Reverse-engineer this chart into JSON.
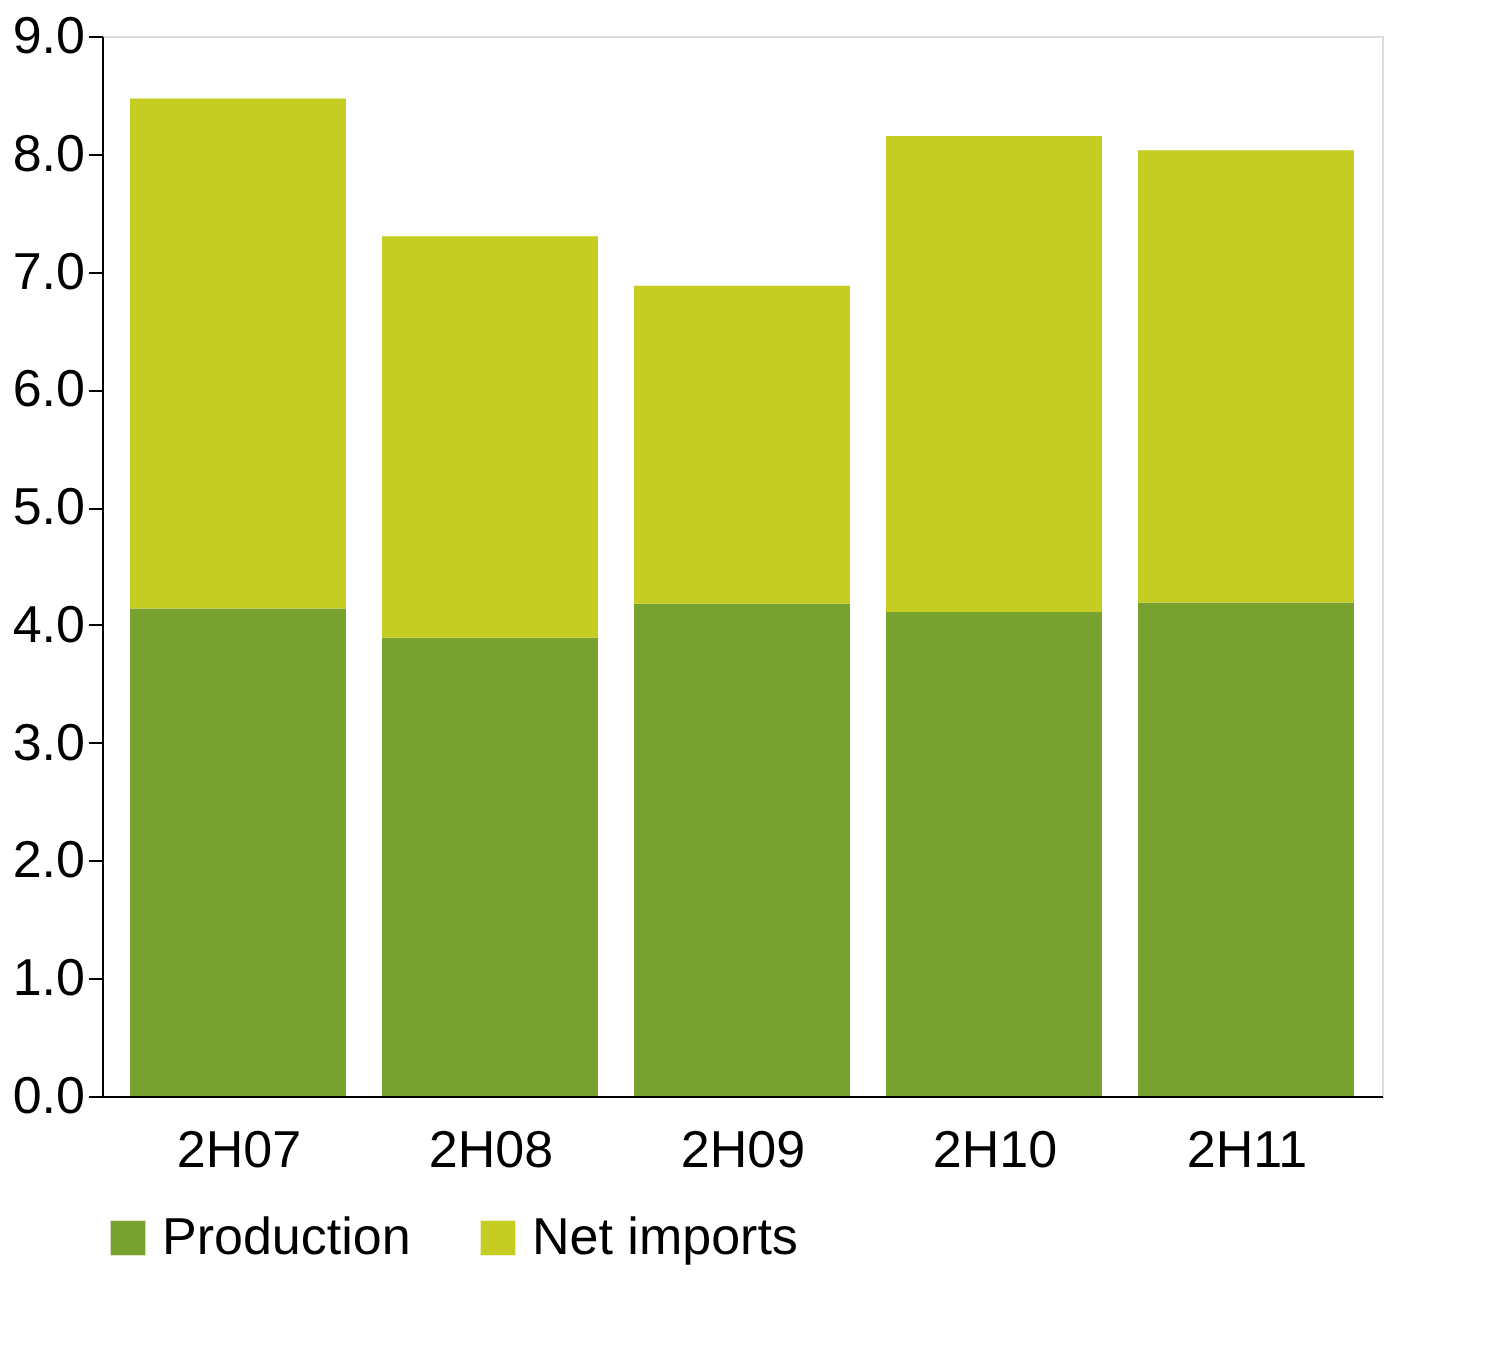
{
  "chart_data": {
    "type": "bar",
    "stacked": true,
    "categories": [
      "2H07",
      "2H08",
      "2H09",
      "2H10",
      "2H11"
    ],
    "series": [
      {
        "name": "Production",
        "color": "#78a22f",
        "values": [
          4.14,
          3.89,
          4.18,
          4.11,
          4.19
        ]
      },
      {
        "name": "Net imports",
        "color": "#c5cd22",
        "values": [
          4.33,
          3.41,
          2.7,
          4.04,
          3.84
        ]
      }
    ],
    "ylim": [
      0,
      9
    ],
    "yticks": [
      {
        "value": 0,
        "label": "0.0"
      },
      {
        "value": 1,
        "label": "1.0"
      },
      {
        "value": 2,
        "label": "2.0"
      },
      {
        "value": 3,
        "label": "3.0"
      },
      {
        "value": 4,
        "label": "4.0"
      },
      {
        "value": 5,
        "label": "5.0"
      },
      {
        "value": 6,
        "label": "6.0"
      },
      {
        "value": 7,
        "label": "7.0"
      },
      {
        "value": 8,
        "label": "8.0"
      },
      {
        "value": 9,
        "label": "9.0"
      }
    ],
    "grid": false,
    "legend": "bottom"
  }
}
